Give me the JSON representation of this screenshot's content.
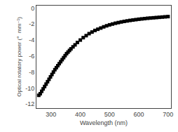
{
  "chart_data": {
    "type": "scatter",
    "xlabel": "Wavelength (nm)",
    "ylabel": "Optical rotatory power (°  mm⁻¹)",
    "x": [
      258,
      263,
      268,
      273,
      278,
      283,
      288,
      293,
      298,
      303,
      308,
      313,
      318,
      323,
      328,
      333,
      338,
      343,
      348,
      353,
      358,
      363,
      368,
      375,
      382,
      390,
      400,
      410,
      420,
      430,
      440,
      450,
      460,
      470,
      480,
      490,
      500,
      510,
      520,
      530,
      540,
      550,
      560,
      570,
      580,
      590,
      600,
      610,
      620,
      630,
      640,
      650,
      660,
      670,
      680,
      690,
      700
    ],
    "values": [
      -10.9,
      -10.7,
      -10.4,
      -10.1,
      -9.8,
      -9.5,
      -9.2,
      -8.9,
      -8.6,
      -8.3,
      -8.0,
      -7.7,
      -7.45,
      -7.2,
      -6.95,
      -6.7,
      -6.45,
      -6.2,
      -5.95,
      -5.7,
      -5.5,
      -5.3,
      -5.1,
      -4.85,
      -4.6,
      -4.3,
      -4.0,
      -3.7,
      -3.45,
      -3.2,
      -3.0,
      -2.8,
      -2.65,
      -2.5,
      -2.35,
      -2.22,
      -2.1,
      -2.0,
      -1.9,
      -1.82,
      -1.74,
      -1.67,
      -1.61,
      -1.55,
      -1.5,
      -1.45,
      -1.4,
      -1.36,
      -1.32,
      -1.28,
      -1.25,
      -1.22,
      -1.19,
      -1.16,
      -1.13,
      -1.1,
      -1.07
    ],
    "color": "black",
    "marker": "square",
    "xlim": [
      250,
      710
    ],
    "ylim": [
      -12.5,
      0.3
    ],
    "xticks": [
      300,
      400,
      500,
      600,
      700
    ],
    "yticks": [
      0,
      -2,
      -4,
      -6,
      -8,
      -10,
      -12
    ],
    "grid": false
  }
}
